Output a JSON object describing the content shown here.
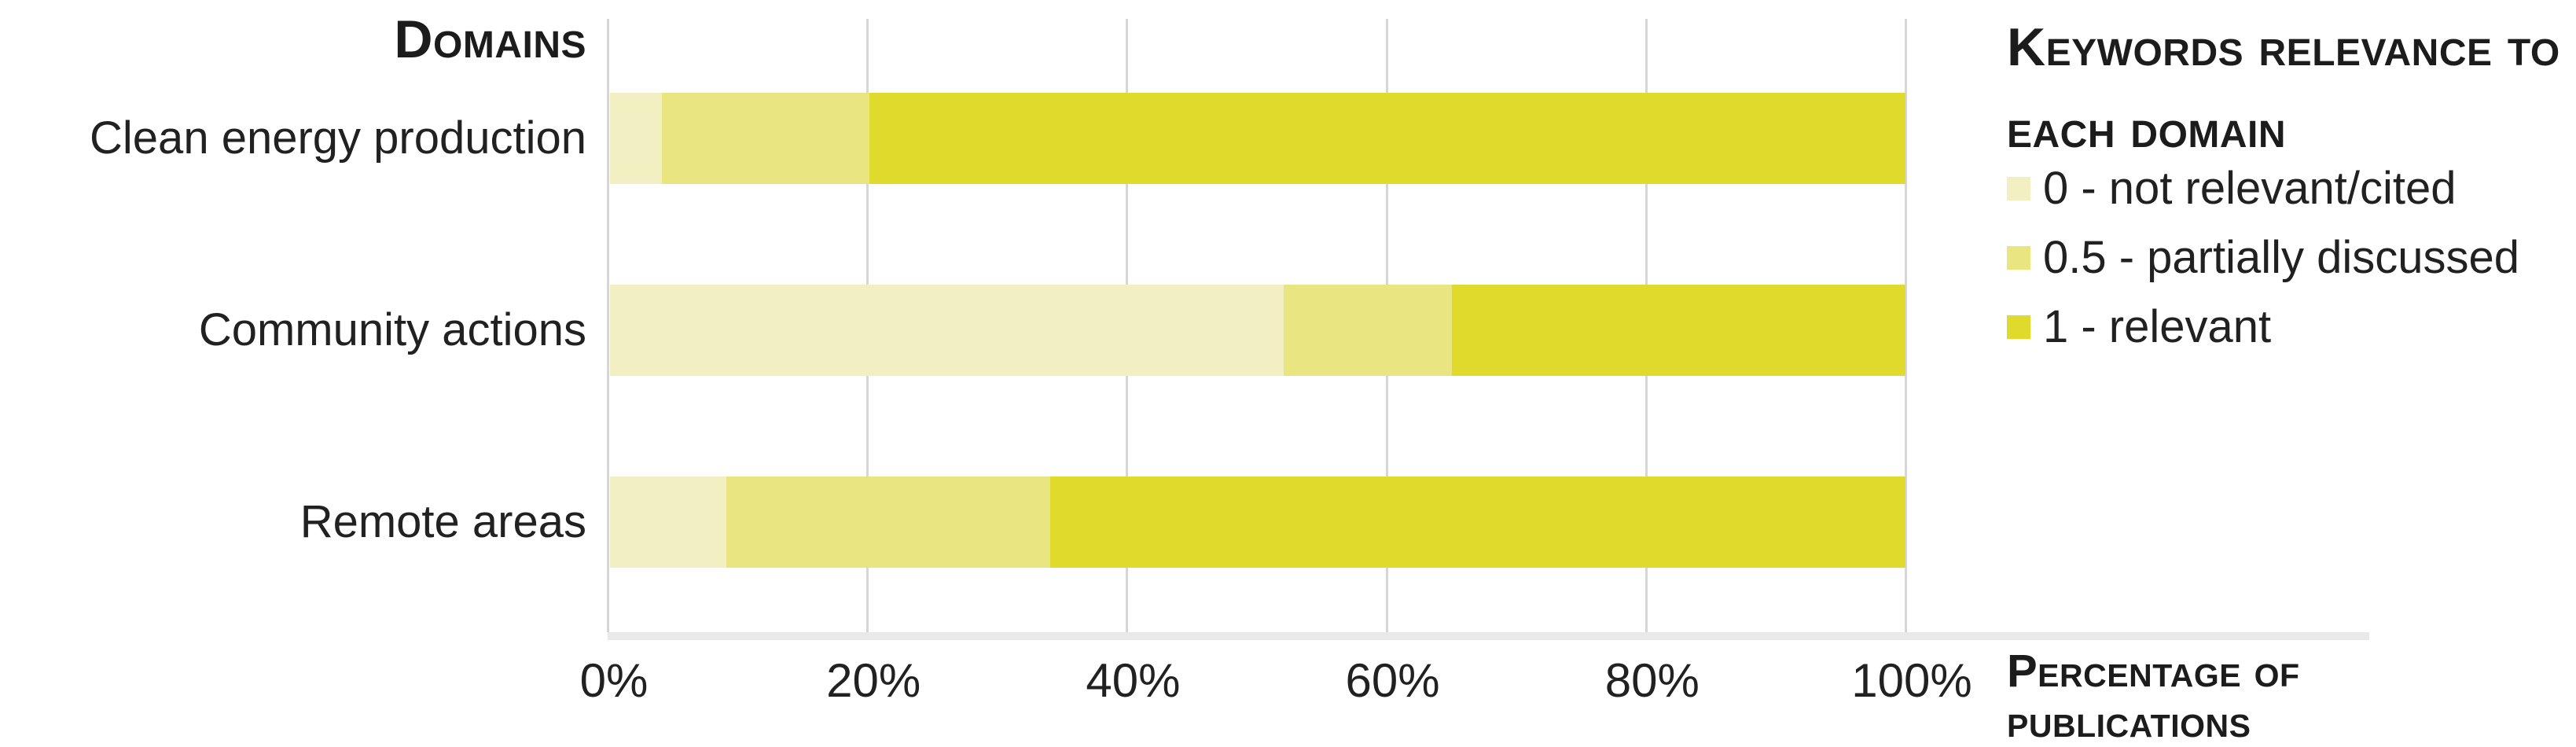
{
  "header": {
    "domains_label": "Domains"
  },
  "legend": {
    "title": "Keywords relevance to each domain",
    "items": [
      {
        "label": "0 - not relevant/cited",
        "color": "#f2efc3"
      },
      {
        "label": "0.5 - partially discussed",
        "color": "#e9e580"
      },
      {
        "label": "1 - relevant",
        "color": "#e0da2c"
      }
    ]
  },
  "axis": {
    "x_title": "Percentage of publications",
    "ticks": [
      {
        "label": "0%",
        "value": 0
      },
      {
        "label": "20%",
        "value": 20
      },
      {
        "label": "40%",
        "value": 40
      },
      {
        "label": "60%",
        "value": 60
      },
      {
        "label": "80%",
        "value": 80
      },
      {
        "label": "100%",
        "value": 100
      }
    ]
  },
  "chart_data": {
    "type": "bar",
    "orientation": "horizontal",
    "stacked": true,
    "units": "percent of publications",
    "title": "Keywords relevance to each domain",
    "xlabel": "Percentage of publications",
    "ylabel": "Domains",
    "xlim": [
      0,
      100
    ],
    "x_tick_labels": [
      "0%",
      "20%",
      "40%",
      "60%",
      "80%",
      "100%"
    ],
    "grid": "vertical",
    "legend_position": "top-right",
    "categories": [
      "Clean energy production",
      "Community actions",
      "Remote areas"
    ],
    "series": [
      {
        "name": "0 - not relevant/cited",
        "color": "#f2efc3",
        "values": [
          4,
          52,
          9
        ]
      },
      {
        "name": "0.5 - partially discussed",
        "color": "#e9e580",
        "values": [
          16,
          13,
          25
        ]
      },
      {
        "name": "1 - relevant",
        "color": "#e0da2c",
        "values": [
          80,
          35,
          66
        ]
      }
    ]
  },
  "colors": {
    "grid": "#d6d6d6",
    "baseline": "#e9e9e9",
    "text": "#212121"
  }
}
